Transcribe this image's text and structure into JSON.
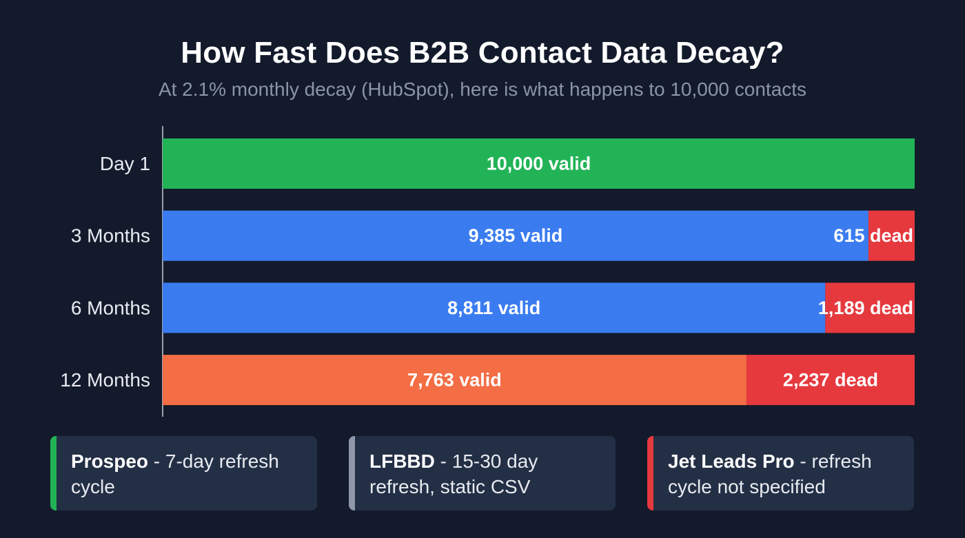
{
  "header": {
    "title": "How Fast Does B2B Contact Data Decay?",
    "subtitle": "At 2.1% monthly decay (HubSpot), here is what happens to 10,000 contacts"
  },
  "chart_data": {
    "type": "bar",
    "orientation": "horizontal",
    "stacked": true,
    "title": "How Fast Does B2B Contact Data Decay?",
    "categories": [
      "Day 1",
      "3 Months",
      "6 Months",
      "12 Months"
    ],
    "total": 10000,
    "series": [
      {
        "name": "valid",
        "values": [
          10000,
          9385,
          8811,
          7763
        ],
        "labels": [
          "10,000 valid",
          "9,385 valid",
          "8,811 valid",
          "7,763 valid"
        ],
        "colors": [
          "#22b357",
          "#3a7cf0",
          "#3a7cf0",
          "#f36d45"
        ]
      },
      {
        "name": "dead",
        "values": [
          0,
          615,
          1189,
          2237
        ],
        "labels": [
          "",
          "615 dead",
          "1,189 dead",
          "2,237 dead"
        ],
        "colors": [
          "#e5393e",
          "#e5393e",
          "#e5393e",
          "#e5393e"
        ]
      }
    ],
    "xlim": [
      0,
      10000
    ],
    "grid": false,
    "legend": "none"
  },
  "cards": [
    {
      "name": "Prospeo",
      "desc": " - 7-day refresh cycle",
      "accent": "#22b357"
    },
    {
      "name": "LFBBD",
      "desc": " - 15-30 day refresh, static CSV",
      "accent": "#8e98a9"
    },
    {
      "name": "Jet Leads Pro",
      "desc": " - refresh cycle not specified",
      "accent": "#e5393e"
    }
  ]
}
